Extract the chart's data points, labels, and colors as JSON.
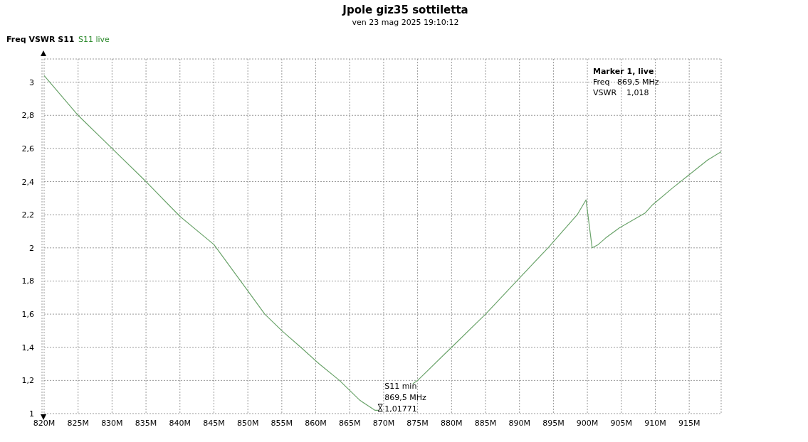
{
  "chart_data": {
    "type": "line",
    "title": "Jpole giz35 sottiletta",
    "subtitle": "ven 23 mag 2025 19:10:12",
    "ylabel": "Freq VSWR S11",
    "legend": "top left",
    "grid": true,
    "xlim": [
      820,
      919.7
    ],
    "ylim": [
      1,
      3.14
    ],
    "xticks": [
      {
        "value": 820,
        "label": "820M"
      },
      {
        "value": 825,
        "label": "825M"
      },
      {
        "value": 830,
        "label": "830M"
      },
      {
        "value": 835,
        "label": "835M"
      },
      {
        "value": 840,
        "label": "840M"
      },
      {
        "value": 845,
        "label": "845M"
      },
      {
        "value": 850,
        "label": "850M"
      },
      {
        "value": 855,
        "label": "855M"
      },
      {
        "value": 860,
        "label": "860M"
      },
      {
        "value": 865,
        "label": "865M"
      },
      {
        "value": 870,
        "label": "870M"
      },
      {
        "value": 875,
        "label": "875M"
      },
      {
        "value": 880,
        "label": "880M"
      },
      {
        "value": 885,
        "label": "885M"
      },
      {
        "value": 890,
        "label": "890M"
      },
      {
        "value": 895,
        "label": "895M"
      },
      {
        "value": 900,
        "label": "900M"
      },
      {
        "value": 905,
        "label": "905M"
      },
      {
        "value": 910,
        "label": "910M"
      },
      {
        "value": 915,
        "label": "915M"
      }
    ],
    "yticks": [
      1,
      {
        "value": 1.2,
        "label": "1,2"
      },
      {
        "value": 1.4,
        "label": "1,4"
      },
      {
        "value": 1.6,
        "label": "1,6"
      },
      {
        "value": 1.8,
        "label": "1,8"
      },
      2,
      {
        "value": 2.2,
        "label": "2,2"
      },
      {
        "value": 2.4,
        "label": "2,4"
      },
      {
        "value": 2.6,
        "label": "2,6"
      },
      {
        "value": 2.8,
        "label": "2,8"
      },
      3
    ],
    "series": [
      {
        "name": "S11 live",
        "color": "#6aa36a",
        "x": [
          820,
          825,
          830,
          835,
          840,
          845,
          850,
          852.5,
          855,
          857.8,
          860.5,
          863.5,
          866.5,
          868.7,
          869.8,
          872,
          874.3,
          875,
          880,
          885,
          889.6,
          894.2,
          898.5,
          899.8,
          900.7,
          901.6,
          902.7,
          904.7,
          908.5,
          909.6,
          912.5,
          917.7,
          919.7
        ],
        "values": [
          3.04,
          2.8,
          2.6,
          2.4,
          2.19,
          2.02,
          1.74,
          1.6,
          1.5,
          1.4,
          1.3,
          1.2,
          1.08,
          1.02,
          1.02,
          null,
          1.18,
          1.2,
          1.4,
          1.6,
          1.8,
          2.0,
          2.2,
          2.29,
          2.0,
          2.02,
          2.06,
          2.12,
          2.21,
          2.26,
          2.36,
          2.53,
          2.58
        ]
      }
    ],
    "annotations": [
      {
        "text": "S11 min\n869,5 MHz\n1,01771",
        "x": 869.5,
        "y": 1.01771
      },
      "Marker 1, live",
      "Freq   869,5 MHz",
      "VSWR    1,018"
    ]
  }
}
